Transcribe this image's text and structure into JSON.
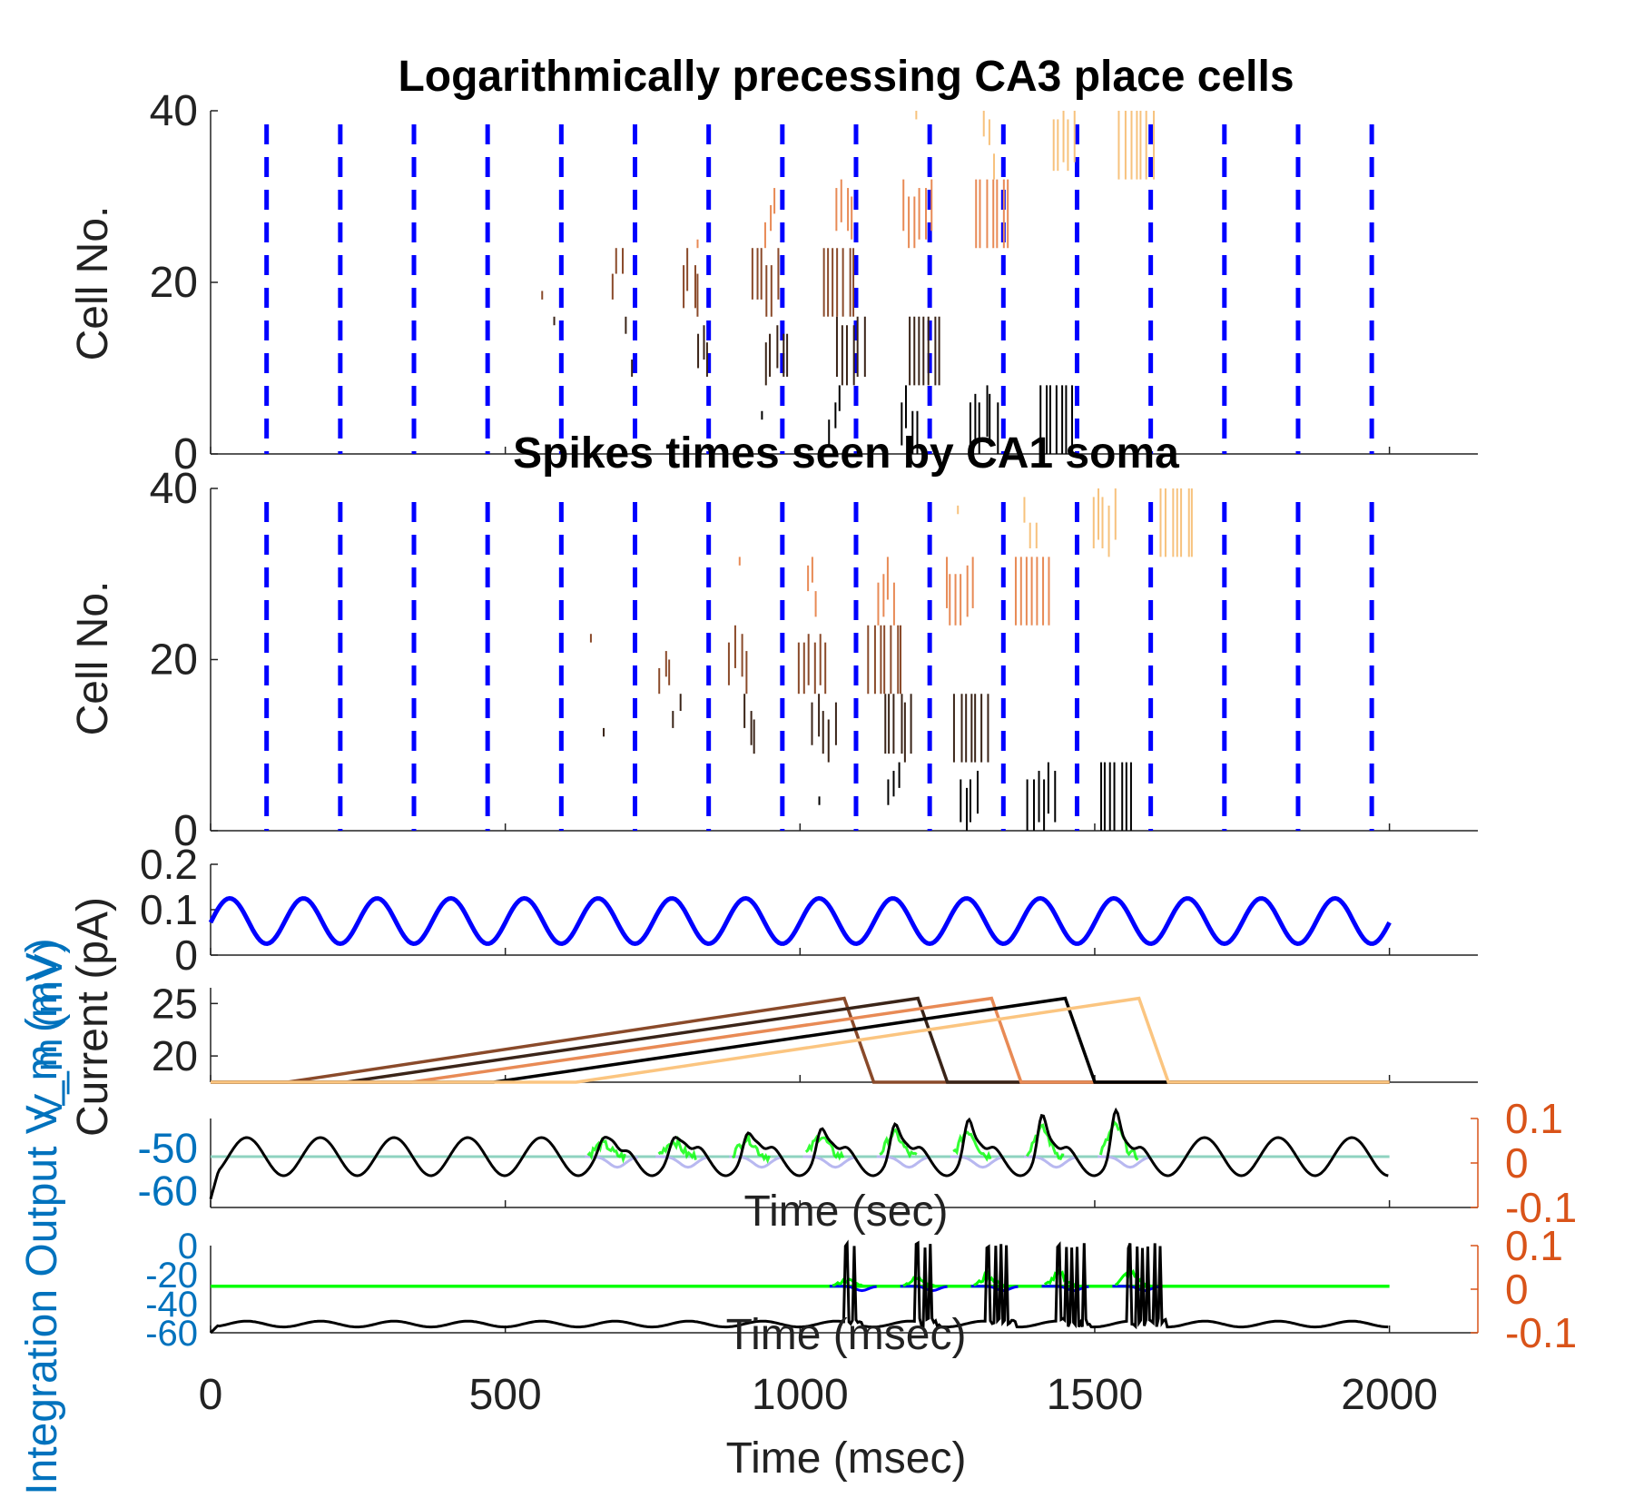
{
  "figure": {
    "xaxis_label": "Time (msec)",
    "xticks": [
      "0",
      "500",
      "1000",
      "1500",
      "2000"
    ]
  },
  "chart_data": [
    {
      "type": "raster",
      "title": "Logarithmically precessing CA3 place cells",
      "ylabel": "Cell No.",
      "xlim": [
        0,
        2150
      ],
      "ylim": [
        0,
        40
      ],
      "yticks": [
        "0",
        "20",
        "40"
      ],
      "theta_trough_times_ms": [
        95,
        220,
        345,
        470,
        595,
        720,
        845,
        970,
        1095,
        1220,
        1345,
        1470,
        1595,
        1720,
        1845,
        1970
      ],
      "theta_line_color": "#0000ff",
      "groups": [
        {
          "cells": [
            0,
            8
          ],
          "color": "#000000",
          "first_burst_ms": 940,
          "last_burst_ms": 1460
        },
        {
          "cells": [
            8,
            16
          ],
          "color": "#3a2418",
          "first_burst_ms": 590,
          "last_burst_ms": 1230
        },
        {
          "cells": [
            16,
            24
          ],
          "color": "#8a4a2a",
          "first_burst_ms": 570,
          "last_burst_ms": 1080
        },
        {
          "cells": [
            24,
            32
          ],
          "color": "#e88a55",
          "first_burst_ms": 830,
          "last_burst_ms": 1340
        },
        {
          "cells": [
            32,
            40
          ],
          "color": "#f7c27d",
          "first_burst_ms": 1200,
          "last_burst_ms": 1580
        }
      ]
    },
    {
      "type": "raster",
      "title": "Spikes times seen by CA1 soma",
      "ylabel": "Cell No.",
      "xlim": [
        0,
        2150
      ],
      "ylim": [
        0,
        40
      ],
      "yticks": [
        "0",
        "20",
        "40"
      ],
      "theta_trough_times_ms": [
        95,
        220,
        345,
        470,
        595,
        720,
        845,
        970,
        1095,
        1220,
        1345,
        1470,
        1595,
        1720,
        1845,
        1970
      ],
      "theta_line_color": "#0000ff",
      "groups": [
        {
          "cells": [
            0,
            8
          ],
          "color": "#000000",
          "first_burst_ms": 1040,
          "last_burst_ms": 1530
        },
        {
          "cells": [
            8,
            16
          ],
          "color": "#3a2418",
          "first_burst_ms": 670,
          "last_burst_ms": 1300
        },
        {
          "cells": [
            16,
            24
          ],
          "color": "#8a4a2a",
          "first_burst_ms": 650,
          "last_burst_ms": 1150
        },
        {
          "cells": [
            24,
            32
          ],
          "color": "#e88a55",
          "first_burst_ms": 900,
          "last_burst_ms": 1410
        },
        {
          "cells": [
            32,
            40
          ],
          "color": "#f7c27d",
          "first_burst_ms": 1270,
          "last_burst_ms": 1650
        }
      ]
    },
    {
      "type": "line",
      "ylabel": "Current (pA)",
      "xlim": [
        0,
        2150
      ],
      "ylim": [
        0,
        0.2
      ],
      "yticks": [
        "0",
        "0.1",
        "0.2"
      ],
      "series": [
        {
          "color": "#0000ff",
          "form": "sine",
          "mean": 0.075,
          "amplitude": 0.05,
          "period_ms": 125,
          "trough_ms": 95,
          "x_range": [
            0,
            2000
          ]
        }
      ]
    },
    {
      "type": "line",
      "xlim": [
        0,
        2150
      ],
      "ylim": [
        17.5,
        26.5
      ],
      "yticks": [
        "20",
        "25"
      ],
      "series": [
        {
          "color": "#8a4a2a",
          "baseline": 17.5,
          "ramp_start_ms": 130,
          "ramp_peak_ms": 1075,
          "peak": 25.5,
          "decay_end_ms": 1125
        },
        {
          "color": "#3a2418",
          "baseline": 17.5,
          "ramp_start_ms": 230,
          "ramp_peak_ms": 1200,
          "peak": 25.5,
          "decay_end_ms": 1250
        },
        {
          "color": "#e88a55",
          "baseline": 17.5,
          "ramp_start_ms": 340,
          "ramp_peak_ms": 1325,
          "peak": 25.5,
          "decay_end_ms": 1375
        },
        {
          "color": "#000000",
          "baseline": 17.5,
          "ramp_start_ms": 480,
          "ramp_peak_ms": 1450,
          "peak": 25.5,
          "decay_end_ms": 1500
        },
        {
          "color": "#fbc580",
          "baseline": 17.5,
          "ramp_start_ms": 620,
          "ramp_peak_ms": 1575,
          "peak": 25.5,
          "decay_end_ms": 1625
        }
      ]
    },
    {
      "type": "line",
      "ylabel_left_visible": "V_m (mV)",
      "ylabel_left_overlap": "Current (pA)",
      "xlabel_partial": "Time (sec)",
      "xlim": [
        0,
        2150
      ],
      "ylim_left": [
        -64,
        -43
      ],
      "yticks_left": [
        "-50",
        "-60"
      ],
      "ylim_right": [
        -0.1,
        0.1
      ],
      "yticks_right": [
        "0.1",
        "0",
        "-0.1"
      ],
      "right_axis_color": "#d95319",
      "left_label_color": "#0072bd",
      "series": [
        {
          "name_hint": "membrane potential",
          "color": "#000000",
          "mean": -52,
          "amplitude": 4.5,
          "period_ms": 125,
          "x_range": [
            0,
            2000
          ]
        },
        {
          "name_hint": "resting line",
          "color": "#8fd3c0",
          "value": -52
        },
        {
          "name_hint": "dendritic bursts",
          "color": "#00ff00",
          "burst_centers_ms": [
            665,
            785,
            910,
            1035,
            1160,
            1285,
            1410,
            1535
          ]
        },
        {
          "name_hint": "hyperpolarizing dips",
          "color": "#b8b8f0"
        }
      ]
    },
    {
      "type": "line",
      "ylabel_left_overlap": "Integration Output V_m (mV)",
      "xlabel_partial": "Time (msec)",
      "xlim": [
        0,
        2150
      ],
      "ylim_left": [
        -60,
        0
      ],
      "yticks_left": [
        "0",
        "-20",
        "-40",
        "-60"
      ],
      "ylim_right": [
        -0.1,
        0.1
      ],
      "yticks_right": [
        "0.1",
        "0",
        "-0.1"
      ],
      "right_axis_color": "#d95319",
      "left_label_color": "#0072bd",
      "series": [
        {
          "name_hint": "soma potential",
          "color": "#000000",
          "mean": -54,
          "amplitude": 2,
          "period_ms": 125,
          "spike_bursts_ms": [
            1080,
            1200,
            1320,
            1440,
            1560
          ]
        },
        {
          "name_hint": "threshold",
          "color": "#00ff00",
          "value": -28
        },
        {
          "name_hint": "dendritic bursts",
          "color": "#00ff00",
          "burst_centers_ms": [
            1080,
            1200,
            1320,
            1440,
            1560
          ]
        },
        {
          "name_hint": "dips",
          "color": "#0000ff"
        }
      ]
    }
  ]
}
